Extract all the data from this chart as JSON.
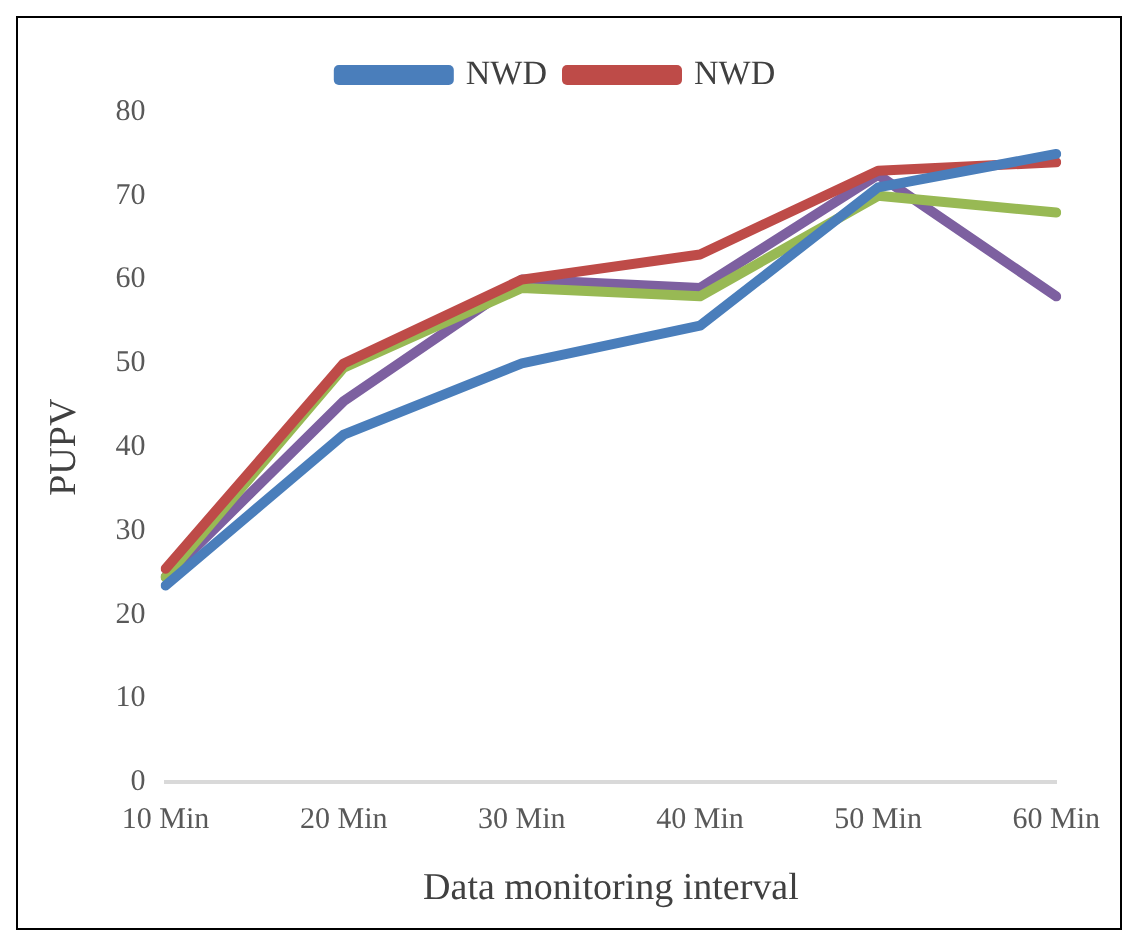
{
  "chart_data": {
    "type": "line",
    "xlabel": "Data monitoring interval",
    "ylabel": "PUPV",
    "categories": [
      "10 Min",
      "20 Min",
      "30 Min",
      "40 Min",
      "50 Min",
      "60 Min"
    ],
    "series": [
      {
        "name": "NWD",
        "color": "#4a7ebb",
        "values": [
          23.5,
          41.5,
          50,
          54.5,
          71,
          75
        ]
      },
      {
        "name": "NWD",
        "color": "#be4b48",
        "values": [
          25.5,
          50,
          60,
          63,
          73,
          74
        ]
      },
      {
        "color": "#98b954",
        "values": [
          24.5,
          49.5,
          59,
          58,
          70,
          68
        ]
      },
      {
        "color": "#7d60a0",
        "values": [
          24.5,
          45.5,
          60,
          59,
          72.5,
          58
        ]
      }
    ],
    "ylim": [
      0,
      80
    ],
    "yticks": [
      0,
      10,
      20,
      30,
      40,
      50,
      60,
      70,
      80
    ],
    "grid": false,
    "legend": "top",
    "marker": "none",
    "line_style": "solid"
  }
}
